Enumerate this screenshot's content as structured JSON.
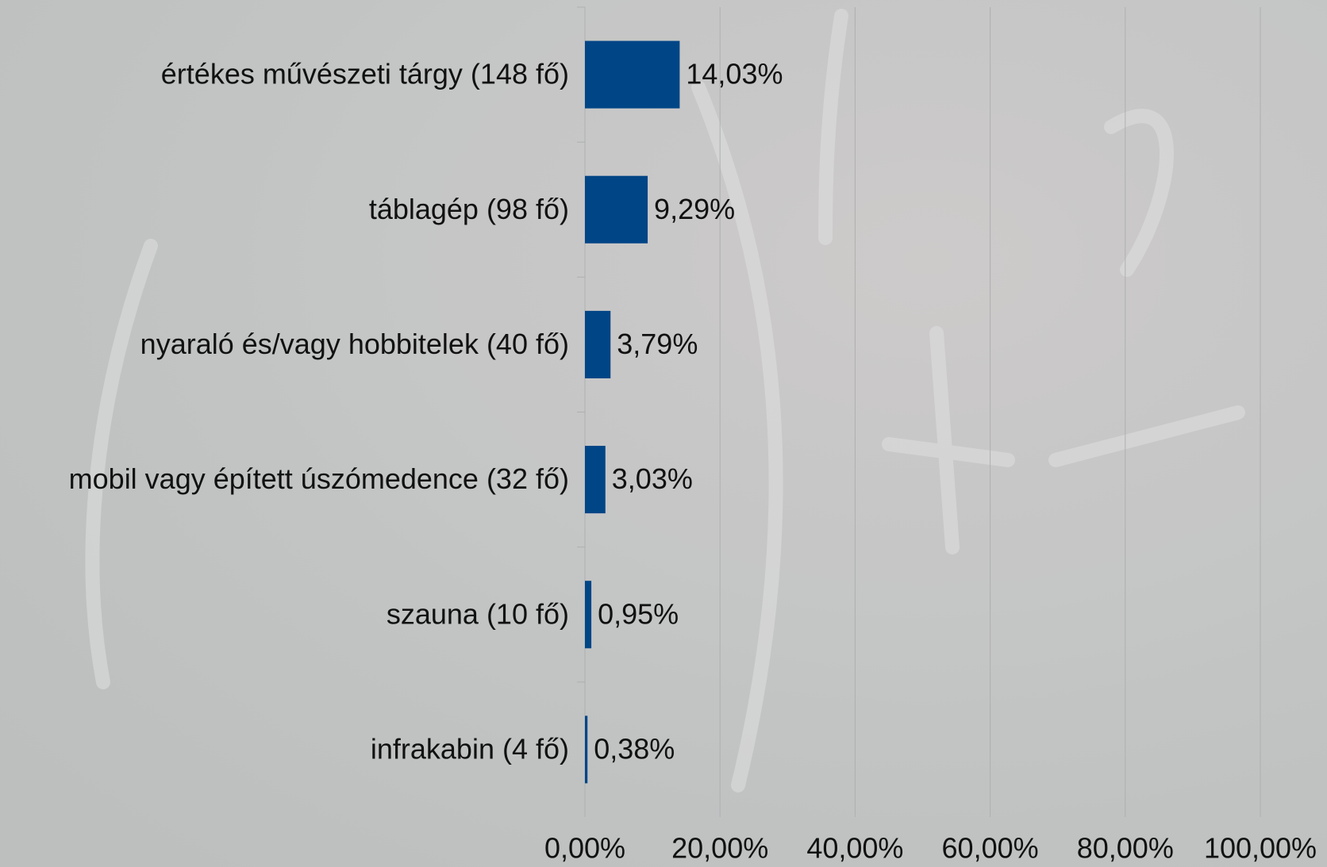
{
  "chart_data": {
    "type": "bar",
    "orientation": "horizontal",
    "categories": [
      "értékes művészeti tárgy (148 fő)",
      "táblagép (98 fő)",
      "nyaraló és/vagy hobbitelek (40 fő)",
      "mobil vagy épített úszómedence (32 fő)",
      "szauna (10 fő)",
      "infrakabin (4 fő)"
    ],
    "values": [
      14.03,
      9.29,
      3.79,
      3.03,
      0.95,
      0.38
    ],
    "value_labels": [
      "14,03%",
      "9,29%",
      "3,79%",
      "3,03%",
      "0,95%",
      "0,38%"
    ],
    "color": "#004586",
    "xlim": [
      0,
      100
    ],
    "xticks": [
      {
        "value": 0,
        "label": "0,00%"
      },
      {
        "value": 20,
        "label": "20,00%"
      },
      {
        "value": 40,
        "label": "40,00%"
      },
      {
        "value": 60,
        "label": "60,00%"
      },
      {
        "value": 80,
        "label": "80,00%"
      },
      {
        "value": 100,
        "label": "100,00%"
      }
    ],
    "grid": true
  }
}
